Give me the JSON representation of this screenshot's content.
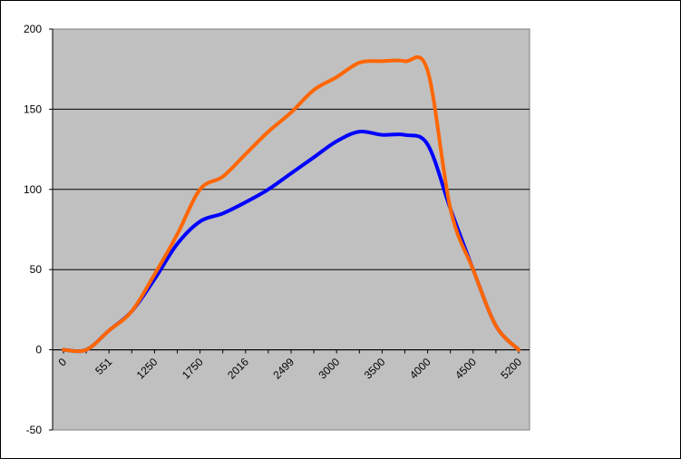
{
  "chart_data": {
    "type": "line",
    "title": "",
    "xlabel": "",
    "ylabel": "",
    "categories": [
      "0",
      "",
      "551",
      "",
      "1250",
      "",
      "1750",
      "",
      "2016",
      "",
      "2499",
      "",
      "3000",
      "",
      "3500",
      "",
      "4000",
      "",
      "4500",
      "",
      "5200"
    ],
    "ylim": [
      -50,
      200
    ],
    "yticks": [
      -50,
      0,
      50,
      100,
      150,
      200
    ],
    "grid": "horizontal",
    "plot_background": "#c0c0c0",
    "series": [
      {
        "color": "#0000ff",
        "values": [
          0,
          0,
          12,
          24,
          44,
          66,
          80,
          85,
          92,
          100,
          110,
          120,
          130,
          136,
          134,
          134,
          128,
          88,
          50,
          15,
          0
        ]
      },
      {
        "color": "#ff6600",
        "values": [
          0,
          0,
          12,
          24,
          47,
          72,
          100,
          108,
          122,
          136,
          148,
          162,
          170,
          179,
          180,
          180,
          174,
          88,
          50,
          15,
          0
        ]
      }
    ]
  }
}
